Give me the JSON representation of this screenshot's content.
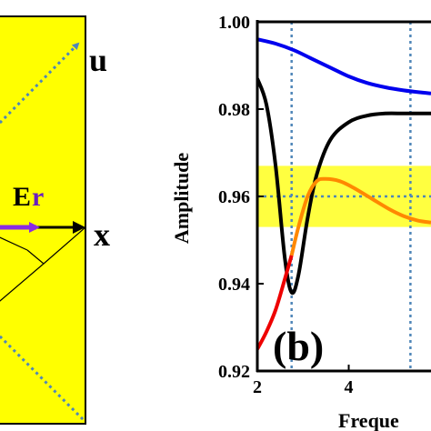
{
  "left_panel": {
    "u_label": "u",
    "x_label": "x",
    "er_main": "E",
    "er_sub": "r",
    "background_color": "#ffff00"
  },
  "chart_data": {
    "type": "line",
    "panel_label": "(b)",
    "xlabel": "Freque",
    "ylabel": "Amplitude",
    "xlim": [
      2,
      5.8
    ],
    "ylim": [
      0.92,
      1.0
    ],
    "x_ticks": [
      2,
      4
    ],
    "y_ticks": [
      "0.92",
      "0.94",
      "0.96",
      "0.98",
      "1.00"
    ],
    "vertical_guides": [
      2.75,
      5.35
    ],
    "horizontal_guide": 0.96,
    "highlight_band": {
      "y0": 0.953,
      "y1": 0.967,
      "color": "#ffff00"
    },
    "series": [
      {
        "color": "#0000ee",
        "x": [
          2.0,
          2.4,
          2.8,
          3.2,
          3.6,
          4.0,
          4.4,
          4.8,
          5.2,
          5.6,
          5.8
        ],
        "y": [
          0.996,
          0.995,
          0.9935,
          0.9915,
          0.9895,
          0.9875,
          0.986,
          0.985,
          0.9843,
          0.9838,
          0.9836
        ]
      },
      {
        "color": "#000000",
        "x": [
          2.0,
          2.2,
          2.4,
          2.6,
          2.75,
          2.9,
          3.1,
          3.3,
          3.6,
          4.0,
          4.4,
          4.8,
          5.2,
          5.6,
          5.8
        ],
        "y": [
          0.987,
          0.981,
          0.967,
          0.946,
          0.938,
          0.942,
          0.955,
          0.965,
          0.973,
          0.977,
          0.9785,
          0.979,
          0.979,
          0.979,
          0.979
        ]
      },
      {
        "color": "#ee0000",
        "x": [
          2.0,
          2.2,
          2.4,
          2.6,
          2.75
        ],
        "y": [
          0.925,
          0.929,
          0.934,
          0.941,
          0.9465
        ]
      },
      {
        "color": "#ff8800",
        "x": [
          2.75,
          2.9,
          3.1,
          3.3,
          3.5,
          3.8,
          4.1,
          4.5,
          4.9,
          5.2,
          5.5,
          5.8
        ],
        "y": [
          0.9465,
          0.953,
          0.96,
          0.9635,
          0.964,
          0.9635,
          0.962,
          0.9595,
          0.957,
          0.9555,
          0.9545,
          0.954
        ]
      }
    ]
  }
}
